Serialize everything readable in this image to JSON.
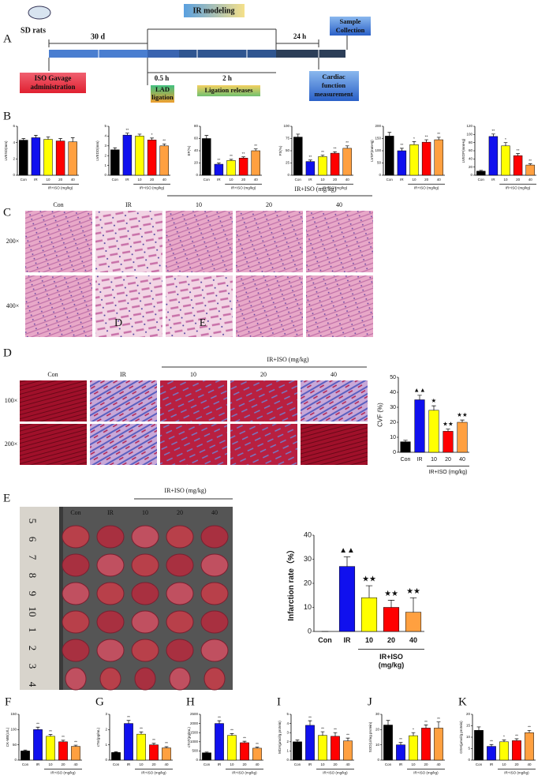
{
  "panel_labels": [
    "A",
    "B",
    "C",
    "D",
    "E"
  ],
  "panel_A": {
    "sd_rats": "SD rats",
    "days": "30 d",
    "ir_modeling": "IR modeling",
    "sample": [
      "Sample",
      "Collection"
    ],
    "h24": "24 h",
    "iso": [
      "ISO Gavage",
      "administration"
    ],
    "h05": "0.5 h",
    "lad": [
      "LAD",
      "ligation"
    ],
    "h2": "2 h",
    "release": "Ligation releases",
    "cardiac": [
      "Cardiac",
      "function",
      "measurement"
    ]
  },
  "panel_C": {
    "columns": [
      "Con",
      "IR",
      "10",
      "20",
      "40"
    ],
    "group": "IR+ISO (mg/kg)",
    "rows": [
      "200×",
      "400×"
    ],
    "marks": [
      "D",
      "E"
    ]
  },
  "panel_D": {
    "columns": [
      "Con",
      "IR",
      "10",
      "20",
      "40"
    ],
    "group": "IR+ISO (mg/kg)",
    "rows": [
      "100×",
      "200×"
    ]
  },
  "panel_E": {
    "columns": [
      "Con",
      "IR",
      "10",
      "20",
      "40"
    ],
    "group": "IR+ISO (mg/kg)",
    "ruler": [
      "5",
      "6",
      "7",
      "8",
      "9",
      "10",
      "1",
      "2",
      "3",
      "4"
    ]
  },
  "chart_data": [
    {
      "type": "bar",
      "ylabel": "LVESD(mm)",
      "categories": [
        "Con",
        "IR",
        "10",
        "20",
        "40"
      ],
      "values": [
        4.3,
        4.6,
        4.4,
        4.2,
        4.1
      ],
      "errors": [
        0.2,
        0.3,
        0.3,
        0.3,
        0.5
      ],
      "markers": [
        null,
        null,
        null,
        null,
        null
      ],
      "group_label": "IR+ISO (mg/kg)",
      "colors": [
        "#000000",
        "#1010ee",
        "#ffff00",
        "#ff0000",
        "#ffa040"
      ],
      "ylim": [
        0,
        6
      ],
      "yticks": [
        0,
        2,
        4,
        6
      ]
    },
    {
      "type": "bar",
      "ylabel": "LVEDD(mm)",
      "categories": [
        "Con",
        "IR",
        "10",
        "20",
        "40"
      ],
      "values": [
        2.6,
        4.1,
        4.0,
        3.6,
        3.0
      ],
      "errors": [
        0.2,
        0.2,
        0.2,
        0.2,
        0.2
      ],
      "markers": [
        null,
        "**",
        null,
        "*",
        "**"
      ],
      "group_label": "IR+ISO (mg/kg)",
      "colors": [
        "#000000",
        "#1010ee",
        "#ffff00",
        "#ff0000",
        "#ffa040"
      ],
      "ylim": [
        0,
        5
      ],
      "yticks": [
        0,
        1,
        2,
        3,
        4,
        5
      ]
    },
    {
      "type": "bar",
      "ylabel": "EF(%)",
      "categories": [
        "Con",
        "IR",
        "10",
        "20",
        "40"
      ],
      "values": [
        60,
        18,
        24,
        28,
        40
      ],
      "errors": [
        5,
        2,
        2,
        2,
        3
      ],
      "markers": [
        null,
        "**",
        "**",
        "**",
        "**"
      ],
      "group_label": "IR+ISO (mg/kg)",
      "colors": [
        "#000000",
        "#1010ee",
        "#ffff00",
        "#ff0000",
        "#ffa040"
      ],
      "ylim": [
        0,
        80
      ],
      "yticks": [
        0,
        20,
        40,
        60,
        80
      ]
    },
    {
      "type": "bar",
      "ylabel": "FS(%)",
      "categories": [
        "Con",
        "IR",
        "10",
        "20",
        "40"
      ],
      "values": [
        78,
        28,
        38,
        45,
        55
      ],
      "errors": [
        6,
        3,
        3,
        3,
        5
      ],
      "markers": [
        null,
        "**",
        "**",
        "**",
        "**"
      ],
      "group_label": "IR+ISO (mg/kg)",
      "colors": [
        "#000000",
        "#1010ee",
        "#ffff00",
        "#ff0000",
        "#ffa040"
      ],
      "ylim": [
        0,
        100
      ],
      "yticks": [
        0,
        25,
        50,
        75,
        100
      ]
    },
    {
      "type": "bar",
      "ylabel": "LVSP(mmHg)",
      "categories": [
        "Con",
        "IR",
        "10",
        "20",
        "40"
      ],
      "values": [
        160,
        100,
        125,
        135,
        145
      ],
      "errors": [
        15,
        10,
        12,
        10,
        10
      ],
      "markers": [
        null,
        "**",
        "*",
        "**",
        "**"
      ],
      "group_label": "IR+ISO (mg/kg)",
      "colors": [
        "#000000",
        "#1010ee",
        "#ffff00",
        "#ff0000",
        "#ffa040"
      ],
      "ylim": [
        0,
        200
      ],
      "yticks": [
        0,
        50,
        100,
        150,
        200
      ]
    },
    {
      "type": "bar",
      "ylabel": "LVEDP(mmHg)",
      "categories": [
        "Con",
        "IR",
        "10",
        "20",
        "40"
      ],
      "values": [
        10,
        95,
        72,
        48,
        25
      ],
      "errors": [
        2,
        6,
        8,
        5,
        3
      ],
      "markers": [
        null,
        "**",
        "*",
        "**",
        "**"
      ],
      "group_label": "IR+ISO (mg/kg)",
      "colors": [
        "#000000",
        "#1010ee",
        "#ffff00",
        "#ff0000",
        "#ffa040"
      ],
      "ylim": [
        0,
        120
      ],
      "yticks": [
        0,
        20,
        40,
        60,
        80,
        100,
        120
      ]
    },
    {
      "type": "bar",
      "ylabel": "CVF (%)",
      "categories": [
        "Con",
        "IR",
        "10",
        "20",
        "40"
      ],
      "values": [
        7,
        35,
        28,
        14,
        20
      ],
      "errors": [
        1,
        3,
        3,
        1.5,
        1.5
      ],
      "markers": [
        null,
        "▲▲",
        "★",
        "★★",
        "★★"
      ],
      "group_label": "IR+ISO (mg/kg)",
      "colors": [
        "#000000",
        "#1010ee",
        "#ffff00",
        "#ff0000",
        "#ffa040"
      ],
      "ylim": [
        0,
        50
      ],
      "yticks": [
        0,
        10,
        20,
        30,
        40,
        50
      ]
    },
    {
      "type": "bar",
      "ylabel": "Infarction rate（%）",
      "categories": [
        "Con",
        "IR",
        "10",
        "20",
        "40"
      ],
      "values": [
        0,
        27,
        14,
        10,
        8
      ],
      "errors": [
        0,
        4,
        5,
        3,
        6
      ],
      "markers": [
        null,
        "▲▲",
        "★★",
        "★★",
        "★★"
      ],
      "group_label": [
        "IR+ISO",
        "(mg/kg)"
      ],
      "colors": [
        "#000000",
        "#1010ee",
        "#ffff00",
        "#ff0000",
        "#ffa040"
      ],
      "ylim": [
        0,
        40
      ],
      "yticks": [
        0,
        10,
        20,
        30,
        40
      ]
    },
    {
      "type": "bar",
      "panel": "F",
      "ylabel": "CK-MB(U/L)",
      "categories": [
        "Con",
        "IR",
        "10",
        "20",
        "40"
      ],
      "values": [
        30,
        100,
        78,
        60,
        45
      ],
      "errors": [
        3,
        8,
        6,
        5,
        4
      ],
      "markers": [
        null,
        "**",
        "**",
        "**",
        "**"
      ],
      "group_label": "IR+ISO (mg/kg)",
      "colors": [
        "#000000",
        "#1010ee",
        "#ffff00",
        "#ff0000",
        "#ffa040"
      ],
      "ylim": [
        0,
        150
      ],
      "yticks": [
        0,
        50,
        100,
        150
      ]
    },
    {
      "type": "bar",
      "panel": "G",
      "ylabel": "cTnI(pg/mL)",
      "categories": [
        "Con",
        "IR",
        "10",
        "20",
        "40"
      ],
      "values": [
        0.5,
        2.4,
        1.7,
        1.0,
        0.8
      ],
      "errors": [
        0.05,
        0.2,
        0.15,
        0.1,
        0.08
      ],
      "markers": [
        null,
        "**",
        "**",
        "**",
        "**"
      ],
      "group_label": "IR+ISO (mg/kg)",
      "colors": [
        "#000000",
        "#1010ee",
        "#ffff00",
        "#ff0000",
        "#ffa040"
      ],
      "ylim": [
        0,
        3
      ],
      "yticks": [
        0,
        1,
        2,
        3
      ]
    },
    {
      "type": "bar",
      "panel": "H",
      "ylabel": "cTnT(pg/mL)",
      "categories": [
        "Con",
        "IR",
        "10",
        "20",
        "40"
      ],
      "values": [
        400,
        2000,
        1350,
        950,
        650
      ],
      "errors": [
        40,
        150,
        100,
        80,
        60
      ],
      "markers": [
        null,
        "**",
        "**",
        "**",
        "**"
      ],
      "group_label": "IR+ISO (mg/kg)",
      "colors": [
        "#000000",
        "#1010ee",
        "#ffff00",
        "#ff0000",
        "#ffa040"
      ],
      "ylim": [
        0,
        2500
      ],
      "yticks": [
        0,
        500,
        1000,
        1500,
        2000,
        2500
      ]
    },
    {
      "type": "bar",
      "panel": "I",
      "ylabel": "MDA(μmol/g protein)",
      "categories": [
        "Con",
        "IR",
        "10",
        "20",
        "40"
      ],
      "values": [
        2.0,
        3.8,
        2.7,
        2.6,
        2.1
      ],
      "errors": [
        0.2,
        0.5,
        0.4,
        0.4,
        0.3
      ],
      "markers": [
        null,
        "**",
        "**",
        "**",
        "**"
      ],
      "group_label": "IR+ISO (mg/kg)",
      "colors": [
        "#000000",
        "#1010ee",
        "#ffff00",
        "#ff0000",
        "#ffa040"
      ],
      "ylim": [
        0,
        5
      ],
      "yticks": [
        0,
        1,
        2,
        3,
        4,
        5
      ]
    },
    {
      "type": "bar",
      "panel": "J",
      "ylabel": "SOD(U/mg protein)",
      "categories": [
        "Con",
        "IR",
        "10",
        "20",
        "40"
      ],
      "values": [
        23,
        10,
        16,
        21,
        21
      ],
      "errors": [
        3,
        1.5,
        2,
        2,
        4
      ],
      "markers": [
        null,
        "**",
        "*",
        "**",
        "**"
      ],
      "group_label": "IR+ISO (mg/kg)",
      "colors": [
        "#000000",
        "#1010ee",
        "#ffff00",
        "#ff0000",
        "#ffa040"
      ],
      "ylim": [
        0,
        30
      ],
      "yticks": [
        0,
        10,
        20,
        30
      ]
    },
    {
      "type": "bar",
      "panel": "K",
      "ylabel": "GSH(μmol/g protein)",
      "categories": [
        "Con",
        "IR",
        "10",
        "20",
        "40"
      ],
      "values": [
        13,
        6,
        8,
        8.5,
        12
      ],
      "errors": [
        1.5,
        0.8,
        0.8,
        0.8,
        1
      ],
      "markers": [
        null,
        "**",
        "*",
        "**",
        "**"
      ],
      "group_label": "IR+ISO (mg/kg)",
      "colors": [
        "#000000",
        "#1010ee",
        "#ffff00",
        "#ff0000",
        "#ffa040"
      ],
      "ylim": [
        0,
        20
      ],
      "yticks": [
        0,
        5,
        10,
        15,
        20
      ]
    }
  ]
}
